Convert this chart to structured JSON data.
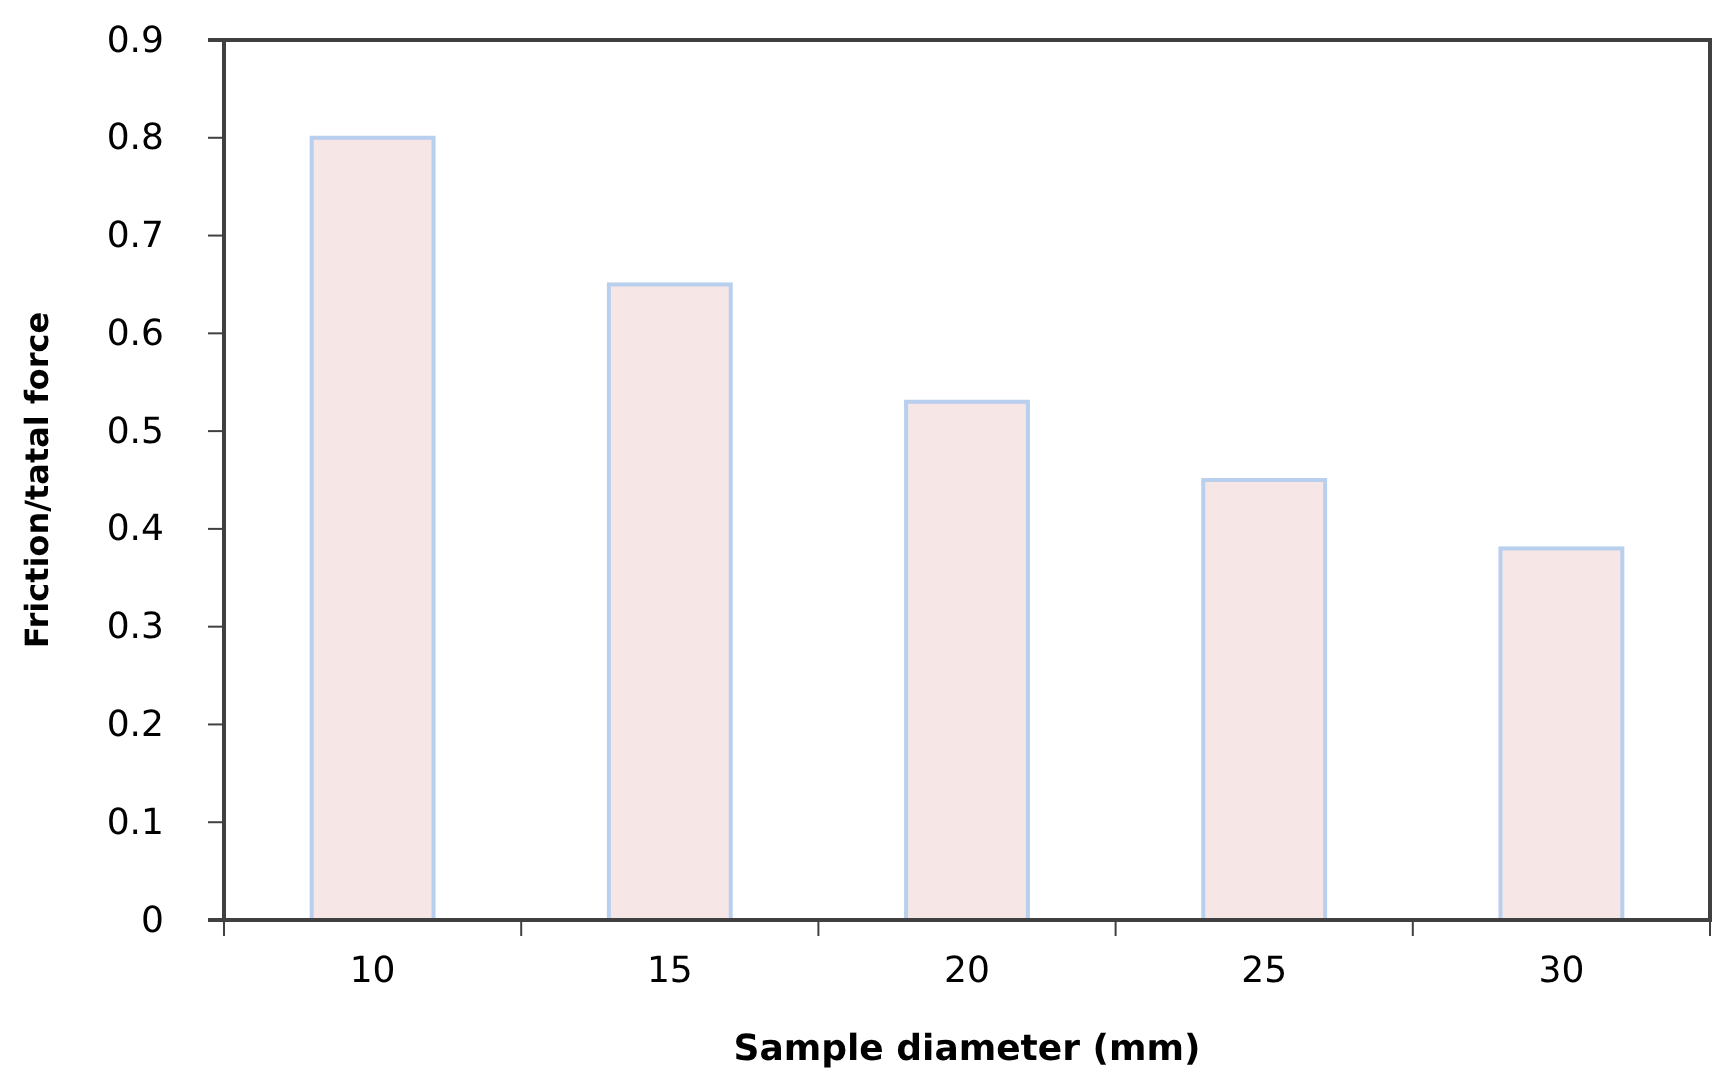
{
  "chart_data": {
    "type": "bar",
    "xlabel": "Sample diameter (mm)",
    "ylabel": "Friction/tatal force",
    "categories": [
      "10",
      "15",
      "20",
      "25",
      "30"
    ],
    "values": [
      0.8,
      0.65,
      0.53,
      0.45,
      0.38
    ],
    "color": "#f6e6e6",
    "ylim": [
      0,
      0.9
    ],
    "yticks": [
      0,
      0.1,
      0.2,
      0.3,
      0.4,
      0.5,
      0.6,
      0.7,
      0.8,
      0.9
    ],
    "grid": false,
    "legend": false
  }
}
